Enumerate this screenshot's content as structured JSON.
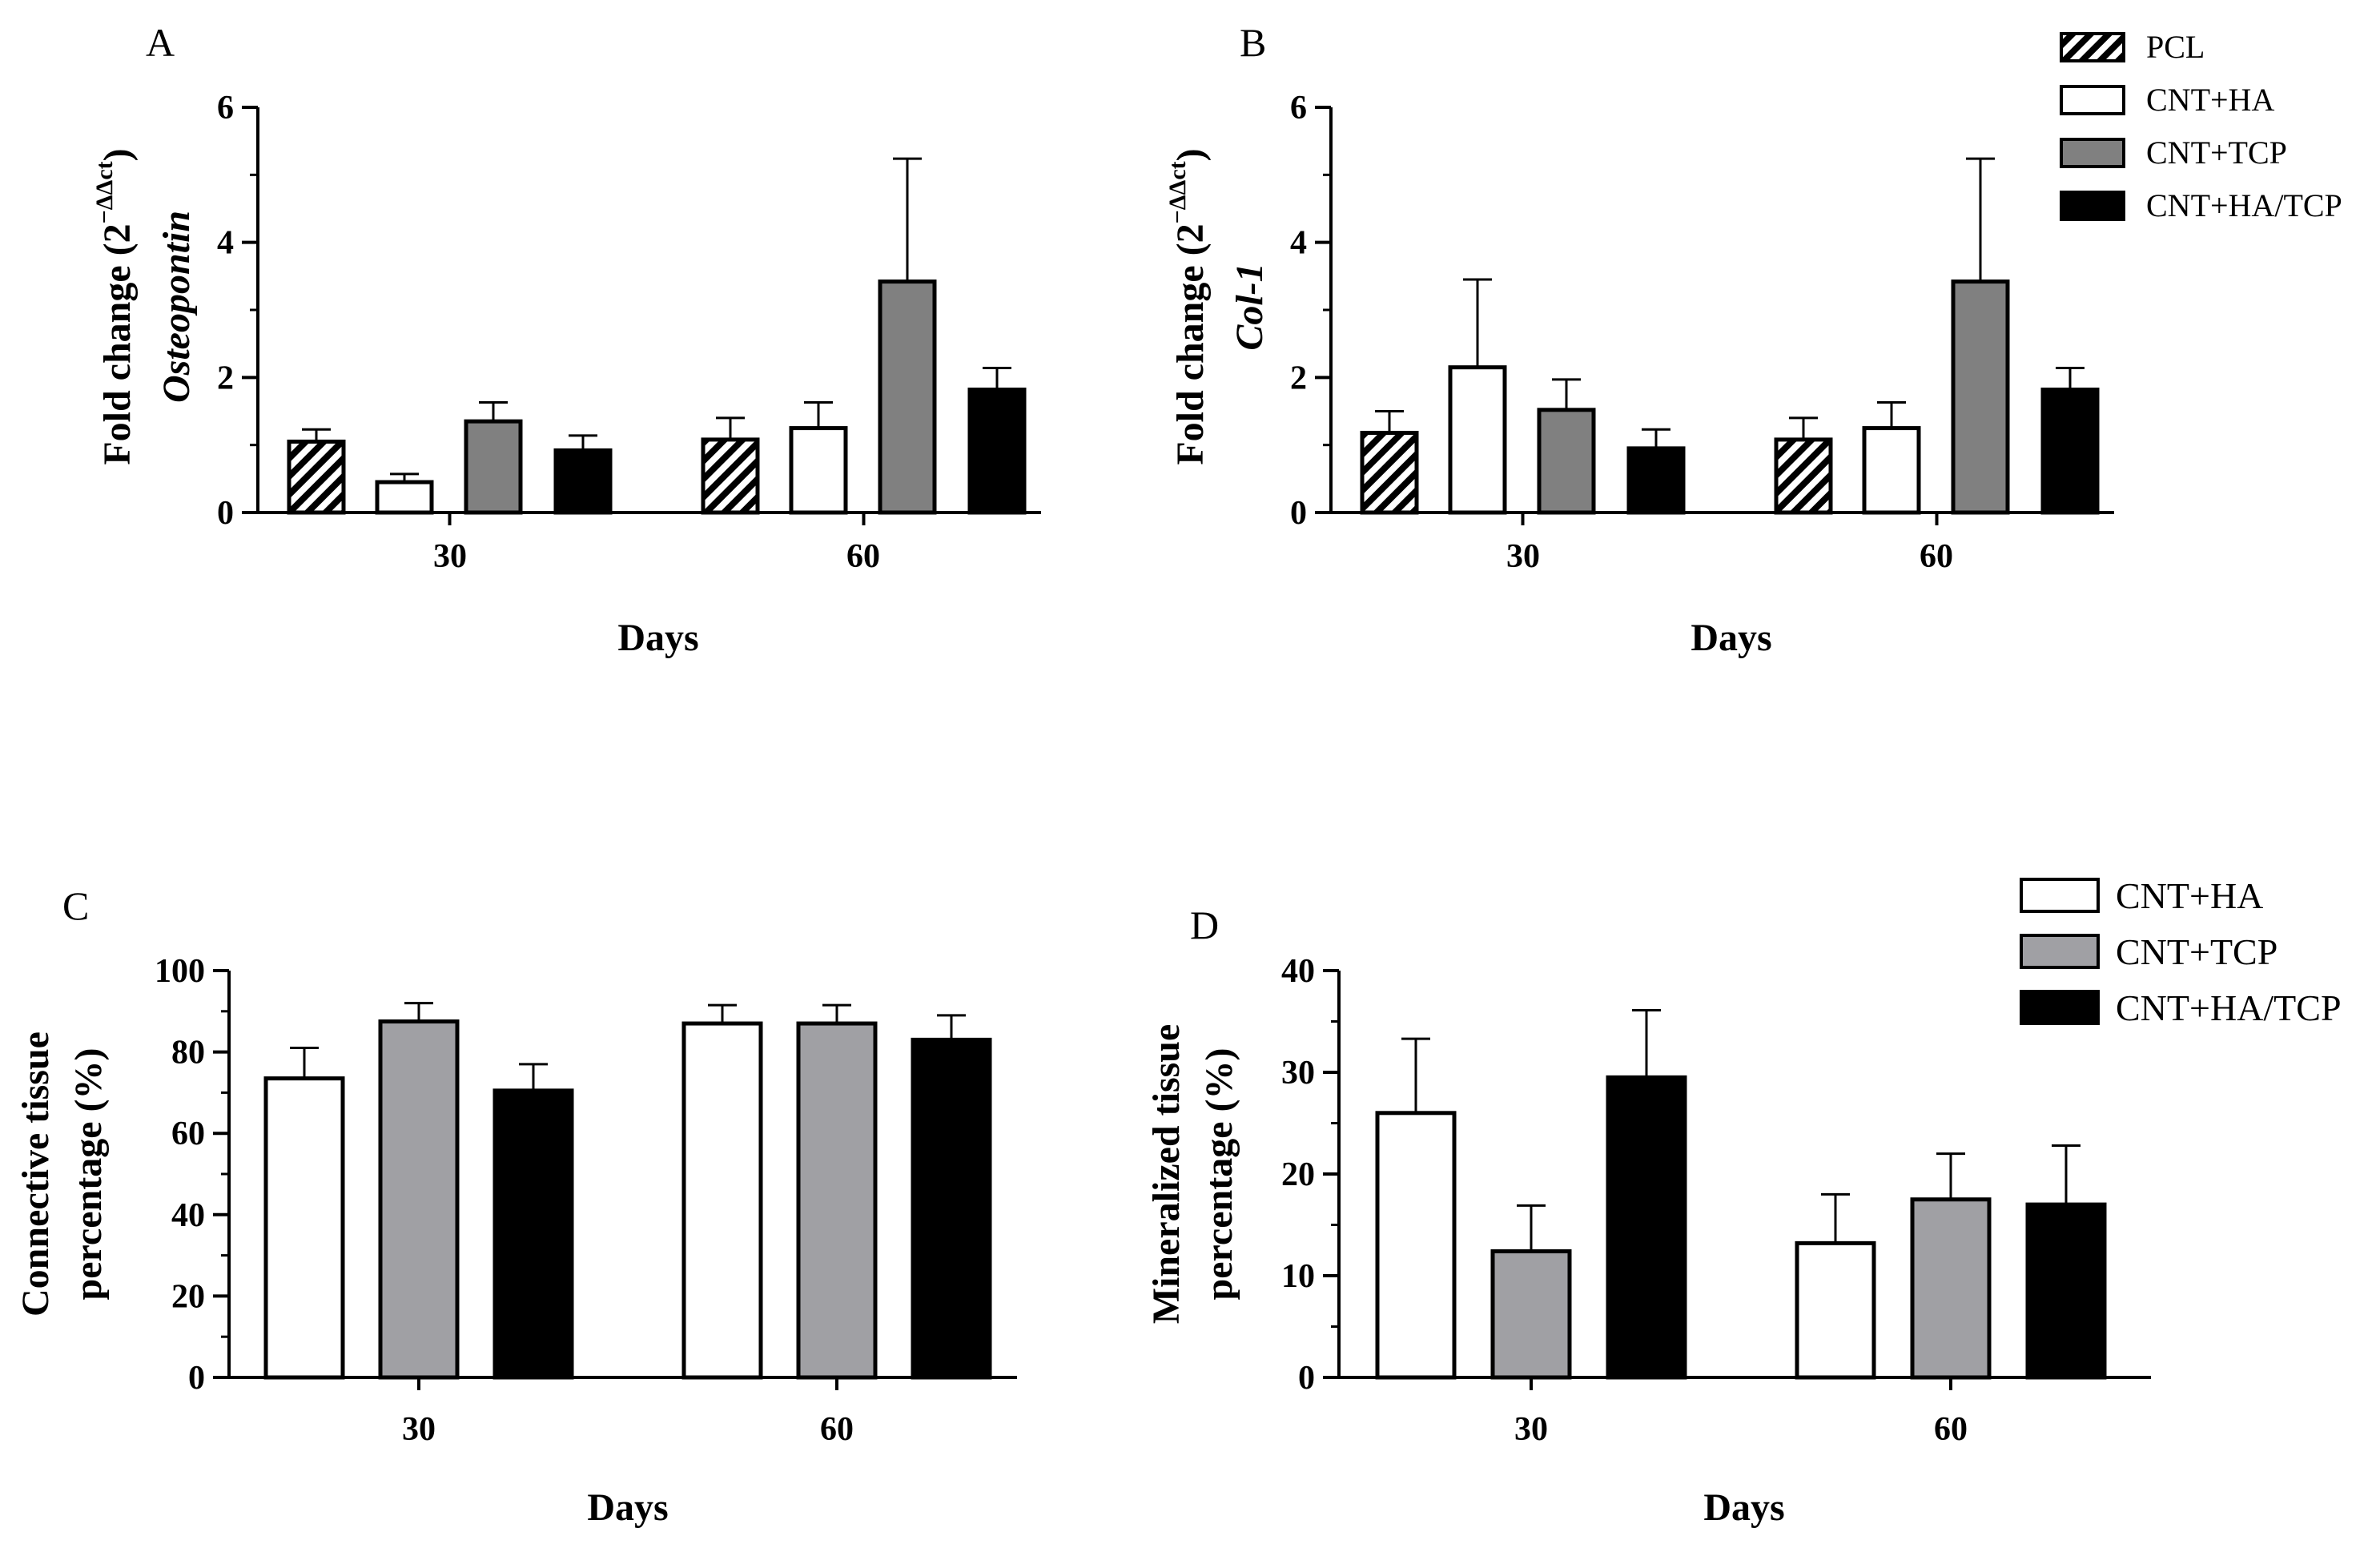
{
  "chart_data": [
    {
      "panel": "A",
      "type": "bar",
      "categories": [
        "30",
        "60"
      ],
      "xlabel": "Days",
      "ylabel_line1": "Fold change (2",
      "ylabel_sup": "−ΔΔct",
      "ylabel_close": ")",
      "ylabel_line2": "Osteopontin",
      "ylim": [
        0,
        6
      ],
      "yticks": [
        0,
        2,
        4,
        6
      ],
      "series": [
        {
          "name": "PCL",
          "fill": "hatch",
          "values": [
            1.05,
            1.08
          ],
          "errors": [
            0.18,
            0.32
          ]
        },
        {
          "name": "CNT+HA",
          "fill": "#ffffff",
          "values": [
            0.45,
            1.25
          ],
          "errors": [
            0.12,
            0.38
          ]
        },
        {
          "name": "CNT+TCP",
          "fill": "#808080",
          "values": [
            1.35,
            3.42
          ],
          "errors": [
            0.28,
            1.82
          ]
        },
        {
          "name": "CNT+HA/TCP",
          "fill": "#000000",
          "values": [
            0.92,
            1.82
          ],
          "errors": [
            0.22,
            0.32
          ]
        }
      ]
    },
    {
      "panel": "B",
      "type": "bar",
      "categories": [
        "30",
        "60"
      ],
      "xlabel": "Days",
      "ylabel_line1": "Fold change (2",
      "ylabel_sup": "−ΔΔct",
      "ylabel_close": ")",
      "ylabel_line2": "Col-1",
      "ylim": [
        0,
        6
      ],
      "yticks": [
        0,
        2,
        4,
        6
      ],
      "series": [
        {
          "name": "PCL",
          "fill": "hatch",
          "values": [
            1.18,
            1.08
          ],
          "errors": [
            0.32,
            0.32
          ]
        },
        {
          "name": "CNT+HA",
          "fill": "#ffffff",
          "values": [
            2.15,
            1.25
          ],
          "errors": [
            1.3,
            0.38
          ]
        },
        {
          "name": "CNT+TCP",
          "fill": "#808080",
          "values": [
            1.52,
            3.42
          ],
          "errors": [
            0.45,
            1.82
          ]
        },
        {
          "name": "CNT+HA/TCP",
          "fill": "#000000",
          "values": [
            0.95,
            1.82
          ],
          "errors": [
            0.28,
            0.32
          ]
        }
      ]
    },
    {
      "panel": "C",
      "type": "bar",
      "categories": [
        "30",
        "60"
      ],
      "xlabel": "Days",
      "ylabel_line1": "Connective tissue",
      "ylabel_line2": "percentage (%)",
      "ylim": [
        0,
        100
      ],
      "yticks": [
        0,
        20,
        40,
        60,
        80,
        100
      ],
      "series": [
        {
          "name": "CNT+HA",
          "fill": "#ffffff",
          "values": [
            73.5,
            87.0
          ],
          "errors": [
            7.5,
            4.5
          ]
        },
        {
          "name": "CNT+TCP",
          "fill": "#a0a0a4",
          "values": [
            87.5,
            87.0
          ],
          "errors": [
            4.5,
            4.5
          ]
        },
        {
          "name": "CNT+HA/TCP",
          "fill": "#000000",
          "values": [
            70.5,
            83.0
          ],
          "errors": [
            6.5,
            6.0
          ]
        }
      ]
    },
    {
      "panel": "D",
      "type": "bar",
      "categories": [
        "30",
        "60"
      ],
      "xlabel": "Days",
      "ylabel_line1": "Mineralized tissue",
      "ylabel_line2": "percentage (%)",
      "ylim": [
        0,
        40
      ],
      "yticks": [
        0,
        10,
        20,
        30,
        40
      ],
      "series": [
        {
          "name": "CNT+HA",
          "fill": "#ffffff",
          "values": [
            26.0,
            13.2
          ],
          "errors": [
            7.3,
            4.8
          ]
        },
        {
          "name": "CNT+TCP",
          "fill": "#a0a0a4",
          "values": [
            12.4,
            17.5
          ],
          "errors": [
            4.5,
            4.5
          ]
        },
        {
          "name": "CNT+HA/TCP",
          "fill": "#000000",
          "values": [
            29.5,
            17.0
          ],
          "errors": [
            6.6,
            5.8
          ]
        }
      ]
    }
  ],
  "legend_top": [
    {
      "label": "PCL",
      "fill": "hatch"
    },
    {
      "label": "CNT+HA",
      "fill": "#ffffff"
    },
    {
      "label": "CNT+TCP",
      "fill": "#808080"
    },
    {
      "label": "CNT+HA/TCP",
      "fill": "#000000"
    }
  ],
  "legend_bottom": [
    {
      "label": "CNT+HA",
      "fill": "#ffffff"
    },
    {
      "label": "CNT+TCP",
      "fill": "#a0a0a4"
    },
    {
      "label": "CNT+HA/TCP",
      "fill": "#000000"
    }
  ]
}
